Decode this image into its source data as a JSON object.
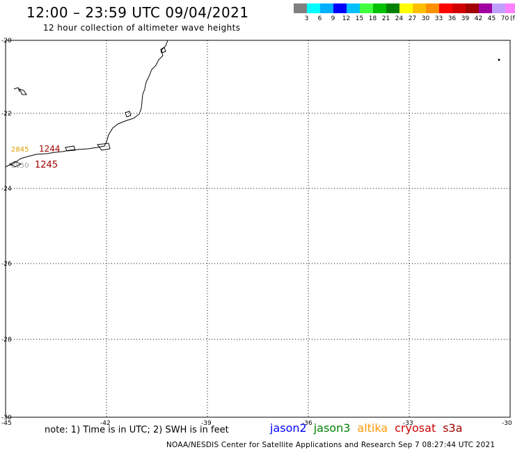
{
  "header": {
    "title": "12:00 – 23:59 UTC 09/04/2021",
    "subtitle": "12 hour collection of altimeter wave heights"
  },
  "legend": {
    "colors": [
      "#808080",
      "#00ffff",
      "#00b0ff",
      "#0000ff",
      "#00c0ff",
      "#40ff40",
      "#00c000",
      "#008000",
      "#ffff00",
      "#ffc000",
      "#ff9000",
      "#ff0000",
      "#d00000",
      "#a00000",
      "#a000a0",
      "#c0a0ff",
      "#ff80ff",
      "#000000"
    ],
    "labels": [
      "3",
      "6",
      "9",
      "12",
      "15",
      "18",
      "21",
      "24",
      "27",
      "30",
      "33",
      "36",
      "39",
      "42",
      "45",
      "70"
    ],
    "unit": "(ft)"
  },
  "map": {
    "lat_labels": [
      "-20",
      "-22",
      "-24",
      "-26",
      "-28",
      "-30"
    ],
    "lon_labels": [
      "-45",
      "-42",
      "-39",
      "-36",
      "-33",
      "-30"
    ],
    "tracks": [
      {
        "label": "2845",
        "color": "#e0a000"
      },
      {
        "label": "1244",
        "color": "#a00000"
      },
      {
        "label": "2850",
        "color": "#a0a0a0"
      },
      {
        "label": "1245",
        "color": "#a00000"
      }
    ]
  },
  "note": "note: 1) Time is in UTC; 2) SWH is in feet",
  "satellites": [
    {
      "name": "jason2",
      "color": "#0000ff"
    },
    {
      "name": "jason3",
      "color": "#008000"
    },
    {
      "name": "altika",
      "color": "#ff9900"
    },
    {
      "name": "cryosat",
      "color": "#cc0000"
    },
    {
      "name": "s3a",
      "color": "#a00000"
    }
  ],
  "footer": "NOAA/NESDIS Center for Satellite Applications and Research   Sep  7 08:27:44 UTC 2021"
}
